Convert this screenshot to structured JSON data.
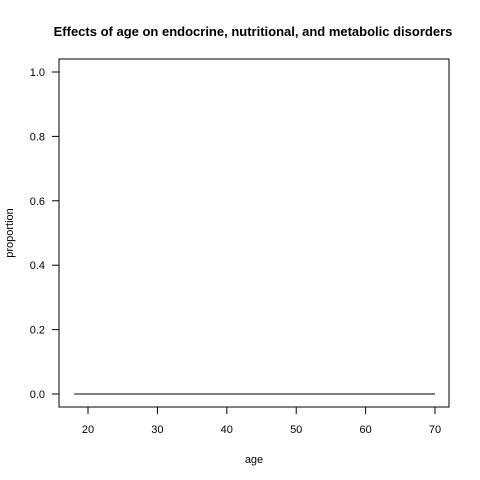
{
  "chart_data": {
    "type": "line",
    "title": "Effects of age on endocrine, nutritional, and metabolic disorders",
    "xlabel": "age",
    "ylabel": "proportion",
    "xlim": [
      18,
      70
    ],
    "ylim": [
      0,
      1
    ],
    "x_ticks": [
      "20",
      "30",
      "40",
      "50",
      "60",
      "70"
    ],
    "y_ticks": [
      "0.0",
      "0.2",
      "0.4",
      "0.6",
      "0.8",
      "1.0"
    ],
    "grid": false,
    "legend": "none",
    "series": [
      {
        "x": [
          18,
          70
        ],
        "y": [
          0,
          0
        ],
        "color": "#000000"
      }
    ]
  }
}
